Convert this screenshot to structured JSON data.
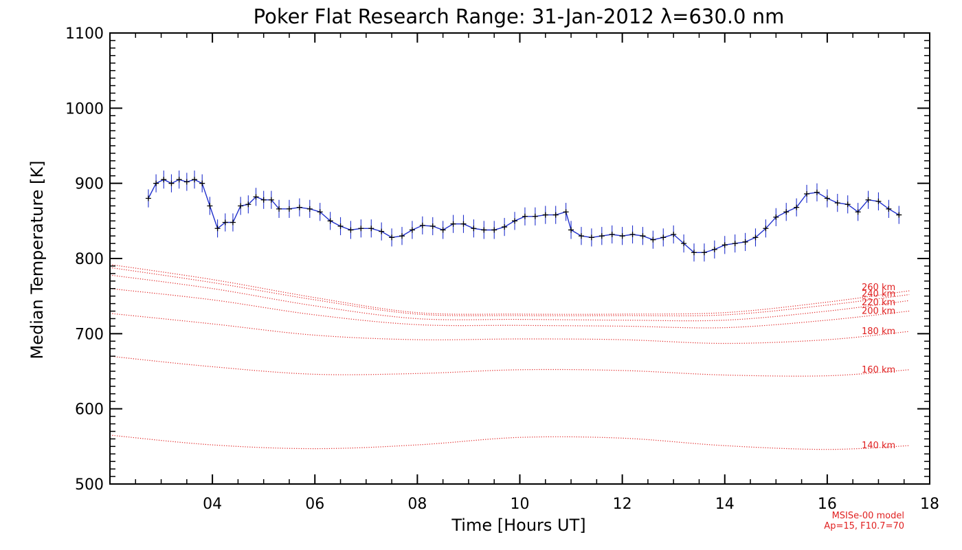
{
  "chart_data": {
    "type": "line",
    "title": "Poker Flat Research Range: 31-Jan-2012 λ=630.0 nm",
    "xlabel": "Time [Hours UT]",
    "ylabel": "Median Temperature [K]",
    "xlim": [
      2.0,
      18.0
    ],
    "ylim": [
      500,
      1100
    ],
    "xticks": [
      {
        "value": 4,
        "label": "04"
      },
      {
        "value": 6,
        "label": "06"
      },
      {
        "value": 8,
        "label": "08"
      },
      {
        "value": 10,
        "label": "10"
      },
      {
        "value": 12,
        "label": "12"
      },
      {
        "value": 14,
        "label": "14"
      },
      {
        "value": 16,
        "label": "16"
      },
      {
        "value": 18,
        "label": "18"
      }
    ],
    "yticks": [
      {
        "value": 500,
        "label": "500"
      },
      {
        "value": 600,
        "label": "600"
      },
      {
        "value": 700,
        "label": "700"
      },
      {
        "value": 800,
        "label": "800"
      },
      {
        "value": 900,
        "label": "900"
      },
      {
        "value": 1000,
        "label": "1000"
      },
      {
        "value": 1100,
        "label": "1100"
      }
    ],
    "grid": false,
    "colors": {
      "measured": "#1f2fcc",
      "median": "#000000",
      "model": "#e02020"
    },
    "measured": {
      "error": 12,
      "x": [
        2.75,
        2.9,
        3.05,
        3.2,
        3.35,
        3.5,
        3.65,
        3.8,
        3.95,
        4.1,
        4.25,
        4.4,
        4.55,
        4.7,
        4.85,
        5.0,
        5.15,
        5.3,
        5.5,
        5.7,
        5.9,
        6.1,
        6.3,
        6.5,
        6.7,
        6.9,
        7.1,
        7.3,
        7.5,
        7.7,
        7.9,
        8.1,
        8.3,
        8.5,
        8.7,
        8.9,
        9.1,
        9.3,
        9.5,
        9.7,
        9.9,
        10.1,
        10.3,
        10.5,
        10.7,
        10.9,
        11.0,
        11.2,
        11.4,
        11.6,
        11.8,
        12.0,
        12.2,
        12.4,
        12.6,
        12.8,
        13.0,
        13.2,
        13.4,
        13.6,
        13.8,
        14.0,
        14.2,
        14.4,
        14.6,
        14.8,
        15.0,
        15.2,
        15.4,
        15.6,
        15.8,
        16.0,
        16.2,
        16.4,
        16.6,
        16.8,
        17.0,
        17.2,
        17.4
      ],
      "y": [
        880,
        900,
        905,
        900,
        905,
        902,
        905,
        900,
        870,
        840,
        848,
        848,
        870,
        872,
        882,
        878,
        878,
        866,
        866,
        868,
        866,
        862,
        850,
        843,
        838,
        840,
        840,
        836,
        828,
        830,
        838,
        844,
        843,
        838,
        846,
        846,
        840,
        838,
        838,
        842,
        850,
        856,
        856,
        858,
        858,
        862,
        838,
        830,
        828,
        830,
        832,
        830,
        832,
        830,
        825,
        828,
        832,
        820,
        808,
        808,
        812,
        818,
        820,
        822,
        828,
        840,
        855,
        862,
        868,
        886,
        888,
        880,
        874,
        872,
        862,
        878,
        876,
        866,
        858
      ]
    },
    "model_series": [
      {
        "name": "260 km",
        "x": [
          2.0,
          4.0,
          6.0,
          8.0,
          10.0,
          12.0,
          14.0,
          16.0,
          17.6
        ],
        "y": [
          792,
          772,
          748,
          728,
          726,
          726,
          728,
          742,
          757
        ]
      },
      {
        "name": "240 km",
        "x": [
          2.0,
          4.0,
          6.0,
          8.0,
          10.0,
          12.0,
          14.0,
          16.0,
          17.6
        ],
        "y": [
          788,
          768,
          745,
          726,
          724,
          724,
          725,
          738,
          752
        ]
      },
      {
        "name": "220 km",
        "x": [
          2.0,
          4.0,
          6.0,
          8.0,
          10.0,
          12.0,
          14.0,
          16.0,
          17.6
        ],
        "y": [
          778,
          760,
          737,
          720,
          719,
          718,
          718,
          730,
          744
        ]
      },
      {
        "name": "200 km",
        "x": [
          2.0,
          4.0,
          6.0,
          8.0,
          10.0,
          12.0,
          14.0,
          16.0,
          17.6
        ],
        "y": [
          760,
          745,
          725,
          712,
          711,
          710,
          708,
          718,
          730
        ]
      },
      {
        "name": "180 km",
        "x": [
          2.0,
          4.0,
          6.0,
          8.0,
          10.0,
          12.0,
          14.0,
          16.0,
          17.6
        ],
        "y": [
          727,
          713,
          698,
          692,
          693,
          692,
          687,
          692,
          703
        ]
      },
      {
        "name": "160 km",
        "x": [
          2.0,
          4.0,
          6.0,
          8.0,
          10.0,
          12.0,
          14.0,
          16.0,
          17.6
        ],
        "y": [
          670,
          656,
          646,
          647,
          652,
          651,
          645,
          644,
          652
        ]
      },
      {
        "name": "140 km",
        "x": [
          2.0,
          4.0,
          6.0,
          8.0,
          10.0,
          12.0,
          14.0,
          16.0,
          17.6
        ],
        "y": [
          565,
          552,
          547,
          552,
          562,
          561,
          551,
          546,
          551
        ]
      }
    ],
    "model_note": [
      "MSISe-00 model",
      "Ap=15, F10.7=70"
    ]
  }
}
